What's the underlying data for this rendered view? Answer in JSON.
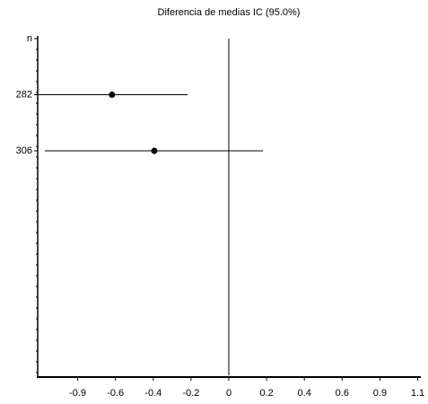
{
  "chart_data": {
    "type": "forest",
    "title": "Diferencia de medias IC  (95.0%)",
    "header": "n",
    "categories": [
      "282",
      "306"
    ],
    "means": [
      -0.657,
      -0.419
    ],
    "lower": [
      -1.08,
      -1.035
    ],
    "upper": [
      -0.232,
      0.192
    ],
    "color": "#000000",
    "reference": 0,
    "xlim": [
      -1.075,
      1.075
    ],
    "xticks": [
      {
        "value": -0.85,
        "label": "-0.9"
      },
      {
        "value": -0.6375,
        "label": "-0.6"
      },
      {
        "value": -0.425,
        "label": "-0.4"
      },
      {
        "value": -0.2125,
        "label": "-0.2"
      },
      0,
      {
        "value": 0.2125,
        "label": "0.2"
      },
      {
        "value": 0.425,
        "label": "0.4"
      },
      {
        "value": 0.6375,
        "label": "0.6"
      },
      {
        "value": 0.85,
        "label": "0.9"
      },
      {
        "value": 1.0625,
        "label": "1.1"
      }
    ]
  }
}
